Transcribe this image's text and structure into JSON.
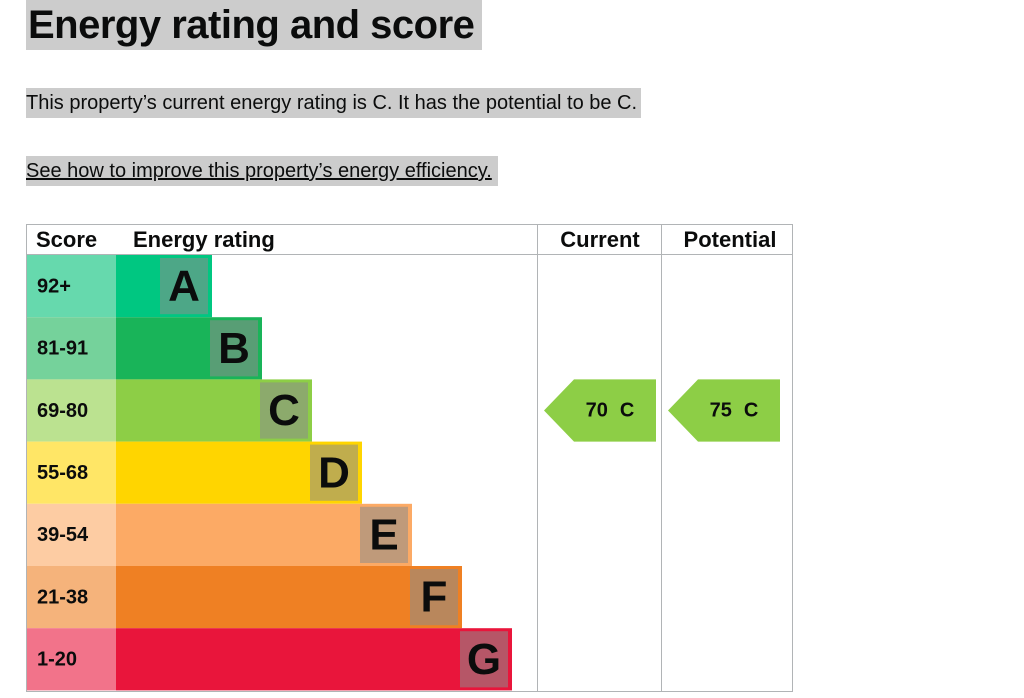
{
  "header": {
    "title": "Energy rating and score"
  },
  "summary": "This property’s current energy rating is C. It has the potential to be C.",
  "link": "See how to improve this property’s energy efficiency.",
  "table": {
    "headers": [
      "Score",
      "Energy rating",
      "Current",
      "Potential"
    ],
    "bands": [
      {
        "score": "92+",
        "letter": "A",
        "color": "#00c781",
        "score_color": "#66d9ad"
      },
      {
        "score": "81-91",
        "letter": "B",
        "color": "#19b459",
        "score_color": "#75d29b"
      },
      {
        "score": "69-80",
        "letter": "C",
        "color": "#8dce46",
        "score_color": "#bbe290"
      },
      {
        "score": "55-68",
        "letter": "D",
        "color": "#ffd500",
        "score_color": "#ffe666"
      },
      {
        "score": "39-54",
        "letter": "E",
        "color": "#fcaa65",
        "score_color": "#fdcca3"
      },
      {
        "score": "21-38",
        "letter": "F",
        "color": "#ef8023",
        "score_color": "#f5b37b"
      },
      {
        "score": "1-20",
        "letter": "G",
        "color": "#e9153b",
        "score_color": "#f2738a"
      }
    ],
    "current": {
      "score": 70,
      "letter": "C",
      "band": 2
    },
    "potential": {
      "score": 75,
      "letter": "C",
      "band": 2
    }
  }
}
